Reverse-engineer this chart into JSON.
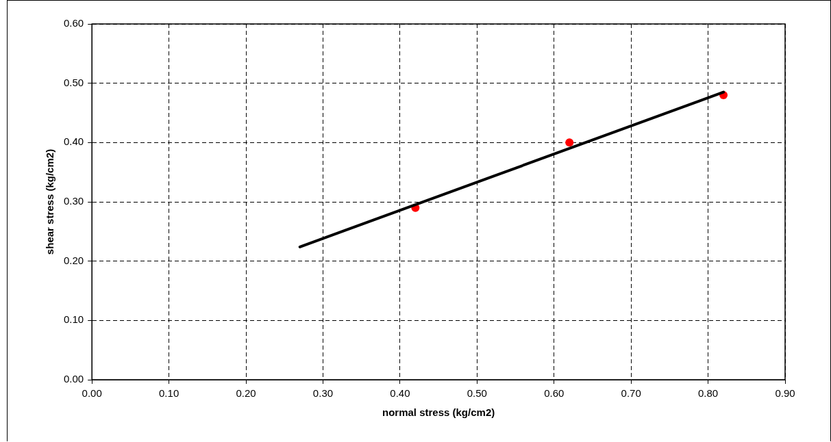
{
  "chart_data": {
    "type": "scatter",
    "xlabel": "normal stress (kg/cm2)",
    "ylabel": "shear stress (kg/cm2)",
    "x": [
      0.42,
      0.62,
      0.82
    ],
    "series": [
      {
        "type": "scatter",
        "color": "#ff0000",
        "values": [
          0.29,
          0.4,
          0.48
        ],
        "marker": "circle"
      },
      {
        "type": "line",
        "color": "#000000",
        "x": [
          0.27,
          0.82
        ],
        "values": [
          0.224,
          0.485
        ],
        "marker": "none",
        "line_style": "solid"
      }
    ],
    "xlim": [
      0,
      0.9
    ],
    "xticks": [
      {
        "value": 0,
        "label": "0.00"
      },
      {
        "value": 0.1,
        "label": "0.10"
      },
      {
        "value": 0.2,
        "label": "0.20"
      },
      {
        "value": 0.3,
        "label": "0.30"
      },
      {
        "value": 0.4,
        "label": "0.40"
      },
      {
        "value": 0.5,
        "label": "0.50"
      },
      {
        "value": 0.6,
        "label": "0.60"
      },
      {
        "value": 0.7,
        "label": "0.70"
      },
      {
        "value": 0.8,
        "label": "0.80"
      },
      {
        "value": 0.9,
        "label": "0.90"
      }
    ],
    "ylim": [
      0,
      0.6
    ],
    "yticks": [
      {
        "value": 0,
        "label": "0.00"
      },
      {
        "value": 0.1,
        "label": "0.10"
      },
      {
        "value": 0.2,
        "label": "0.20"
      },
      {
        "value": 0.3,
        "label": "0.30"
      },
      {
        "value": 0.4,
        "label": "0.40"
      },
      {
        "value": 0.5,
        "label": "0.50"
      },
      {
        "value": 0.6,
        "label": "0.60"
      }
    ],
    "grid": true,
    "line_style": "dashed",
    "legend": false
  }
}
